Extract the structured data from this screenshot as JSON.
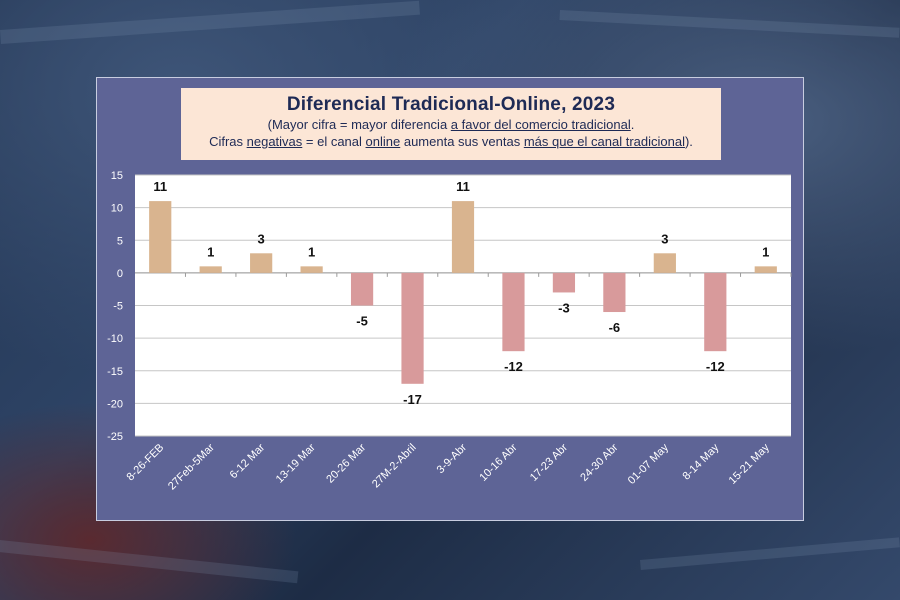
{
  "colors": {
    "positive": "#d9b48f",
    "negative": "#d89a9b",
    "panel": "#5e6496",
    "plot": "#ffffff",
    "title_box": "#fce6d6"
  },
  "header": {
    "title": "Diferencial Tradicional-Online, 2023",
    "line1": {
      "pre": "(Mayor cifra = mayor diferencia ",
      "u1": "a favor del comercio tradicional",
      "post": "."
    },
    "line2": {
      "pre": "Cifras ",
      "u1": "negativas",
      "mid1": " = el canal ",
      "u2": "online",
      "mid2": " aumenta sus ventas ",
      "u3": "más que el canal tradicional",
      "post": ")."
    }
  },
  "chart_data": {
    "type": "bar",
    "title": "Diferencial Tradicional-Online, 2023",
    "categories": [
      "8-26-FEB",
      "27Feb-5Mar",
      "6-12 Mar",
      "13-19 Mar",
      "20-26 Mar",
      "27M-2-Abril",
      "3-9-Abr",
      "10-16 Abr",
      "17-23 Abr",
      "24-30 Abr",
      "01-07 May",
      "8-14 May",
      "15-21 May"
    ],
    "values": [
      11,
      1,
      3,
      1,
      -5,
      -17,
      11,
      -12,
      -3,
      -6,
      3,
      -12,
      1
    ],
    "ylim": [
      -25,
      15
    ],
    "yticks": [
      15,
      10,
      5,
      0,
      -5,
      -10,
      -15,
      -20,
      -25
    ],
    "grid": true,
    "xlabel": "",
    "ylabel": ""
  }
}
